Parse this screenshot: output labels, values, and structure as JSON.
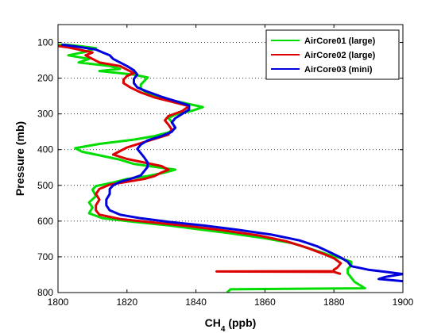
{
  "chart_data": {
    "type": "line",
    "xlabel_main": "CH",
    "xlabel_sub": "4",
    "xlabel_unit": " (ppb)",
    "ylabel": "Pressure (mb)",
    "xlim": [
      1800,
      1900
    ],
    "ylim": [
      800,
      50
    ],
    "y_reversed": true,
    "x_ticks": [
      1800,
      1820,
      1840,
      1860,
      1880,
      1900
    ],
    "y_ticks": [
      100,
      200,
      300,
      400,
      500,
      600,
      700,
      800
    ],
    "grid": "horizontal-dotted",
    "legend_position": "top-right",
    "series": [
      {
        "name": "AirCore01 (large)",
        "color": "#00dd00",
        "points": [
          [
            1799,
            108
          ],
          [
            1802,
            106
          ],
          [
            1806,
            110
          ],
          [
            1811,
            116
          ],
          [
            1808,
            126
          ],
          [
            1803,
            136
          ],
          [
            1809,
            146
          ],
          [
            1806,
            156
          ],
          [
            1815,
            166
          ],
          [
            1818,
            174
          ],
          [
            1812,
            180
          ],
          [
            1822,
            190
          ],
          [
            1826,
            198
          ],
          [
            1825,
            208
          ],
          [
            1824,
            218
          ],
          [
            1824,
            230
          ],
          [
            1826,
            242
          ],
          [
            1829,
            254
          ],
          [
            1835,
            266
          ],
          [
            1842,
            281
          ],
          [
            1839,
            291
          ],
          [
            1834,
            302
          ],
          [
            1832,
            312
          ],
          [
            1833,
            322
          ],
          [
            1834,
            340
          ],
          [
            1832,
            352
          ],
          [
            1828,
            362
          ],
          [
            1822,
            372
          ],
          [
            1812,
            384
          ],
          [
            1805,
            396
          ],
          [
            1807,
            406
          ],
          [
            1812,
            416
          ],
          [
            1818,
            428
          ],
          [
            1822,
            440
          ],
          [
            1828,
            448
          ],
          [
            1834,
            456
          ],
          [
            1830,
            466
          ],
          [
            1826,
            474
          ],
          [
            1820,
            482
          ],
          [
            1816,
            492
          ],
          [
            1811,
            502
          ],
          [
            1810,
            512
          ],
          [
            1811,
            530
          ],
          [
            1809,
            548
          ],
          [
            1810,
            562
          ],
          [
            1809,
            578
          ],
          [
            1813,
            592
          ],
          [
            1822,
            602
          ],
          [
            1832,
            612
          ],
          [
            1840,
            622
          ],
          [
            1850,
            634
          ],
          [
            1860,
            648
          ],
          [
            1868,
            662
          ],
          [
            1874,
            680
          ],
          [
            1879,
            696
          ],
          [
            1882,
            704
          ],
          [
            1885,
            714
          ],
          [
            1885,
            724
          ],
          [
            1884,
            734
          ],
          [
            1884,
            746
          ],
          [
            1885,
            758
          ],
          [
            1886,
            770
          ],
          [
            1888,
            782
          ],
          [
            1889,
            788
          ],
          [
            1875,
            789
          ],
          [
            1860,
            790
          ],
          [
            1850,
            791
          ],
          [
            1849,
            800
          ]
        ]
      },
      {
        "name": "AirCore02 (large)",
        "color": "#dd0000",
        "points": [
          [
            1800,
            110
          ],
          [
            1803,
            114
          ],
          [
            1806,
            120
          ],
          [
            1810,
            128
          ],
          [
            1808,
            136
          ],
          [
            1810,
            146
          ],
          [
            1812,
            156
          ],
          [
            1818,
            166
          ],
          [
            1820,
            176
          ],
          [
            1822,
            186
          ],
          [
            1820,
            194
          ],
          [
            1819,
            204
          ],
          [
            1819,
            214
          ],
          [
            1821,
            226
          ],
          [
            1824,
            240
          ],
          [
            1828,
            254
          ],
          [
            1833,
            266
          ],
          [
            1838,
            278
          ],
          [
            1836,
            292
          ],
          [
            1832,
            306
          ],
          [
            1831,
            318
          ],
          [
            1832,
            330
          ],
          [
            1833,
            344
          ],
          [
            1832,
            358
          ],
          [
            1828,
            370
          ],
          [
            1824,
            382
          ],
          [
            1820,
            394
          ],
          [
            1818,
            404
          ],
          [
            1816,
            414
          ],
          [
            1820,
            426
          ],
          [
            1826,
            438
          ],
          [
            1830,
            446
          ],
          [
            1832,
            456
          ],
          [
            1830,
            464
          ],
          [
            1828,
            474
          ],
          [
            1825,
            482
          ],
          [
            1820,
            490
          ],
          [
            1815,
            498
          ],
          [
            1812,
            510
          ],
          [
            1811,
            524
          ],
          [
            1812,
            540
          ],
          [
            1811,
            556
          ],
          [
            1811,
            570
          ],
          [
            1812,
            582
          ],
          [
            1818,
            594
          ],
          [
            1828,
            604
          ],
          [
            1838,
            614
          ],
          [
            1848,
            626
          ],
          [
            1858,
            640
          ],
          [
            1866,
            656
          ],
          [
            1872,
            674
          ],
          [
            1877,
            692
          ],
          [
            1880,
            704
          ],
          [
            1882,
            718
          ],
          [
            1881,
            730
          ],
          [
            1880,
            736
          ],
          [
            1880,
            740
          ],
          [
            1846,
            741
          ],
          [
            1880,
            742
          ],
          [
            1882,
            748
          ]
        ]
      },
      {
        "name": "AirCore03 (mini)",
        "color": "#0000dd",
        "points": [
          [
            1801,
            106
          ],
          [
            1804,
            110
          ],
          [
            1807,
            114
          ],
          [
            1811,
            120
          ],
          [
            1813,
            128
          ],
          [
            1815,
            136
          ],
          [
            1816,
            146
          ],
          [
            1818,
            156
          ],
          [
            1820,
            166
          ],
          [
            1822,
            178
          ],
          [
            1823,
            190
          ],
          [
            1822,
            202
          ],
          [
            1822,
            214
          ],
          [
            1823,
            226
          ],
          [
            1826,
            238
          ],
          [
            1830,
            252
          ],
          [
            1834,
            264
          ],
          [
            1838,
            276
          ],
          [
            1838,
            288
          ],
          [
            1836,
            300
          ],
          [
            1834,
            312
          ],
          [
            1833,
            324
          ],
          [
            1834,
            338
          ],
          [
            1833,
            350
          ],
          [
            1830,
            362
          ],
          [
            1826,
            374
          ],
          [
            1824,
            386
          ],
          [
            1823,
            398
          ],
          [
            1824,
            410
          ],
          [
            1825,
            422
          ],
          [
            1826,
            436
          ],
          [
            1826,
            448
          ],
          [
            1825,
            460
          ],
          [
            1824,
            472
          ],
          [
            1821,
            482
          ],
          [
            1818,
            490
          ],
          [
            1816,
            500
          ],
          [
            1815,
            510
          ],
          [
            1815,
            524
          ],
          [
            1814,
            540
          ],
          [
            1814,
            556
          ],
          [
            1815,
            570
          ],
          [
            1818,
            582
          ],
          [
            1824,
            592
          ],
          [
            1832,
            602
          ],
          [
            1842,
            612
          ],
          [
            1852,
            624
          ],
          [
            1862,
            638
          ],
          [
            1870,
            654
          ],
          [
            1875,
            670
          ],
          [
            1879,
            688
          ],
          [
            1882,
            702
          ],
          [
            1884,
            714
          ],
          [
            1885,
            726
          ],
          [
            1890,
            736
          ],
          [
            1895,
            742
          ],
          [
            1900,
            748
          ],
          [
            1895,
            756
          ],
          [
            1893,
            762
          ],
          [
            1900,
            768
          ]
        ]
      }
    ]
  }
}
